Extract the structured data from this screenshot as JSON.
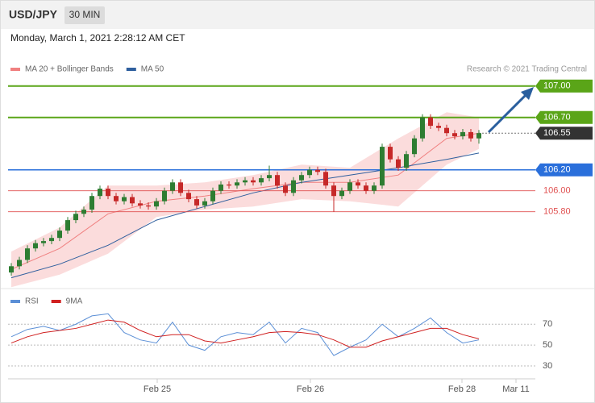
{
  "header": {
    "symbol": "USD/JPY",
    "timeframe": "30 MIN",
    "datetime": "Monday, March 1, 2021 2:28:12 AM CET",
    "credit": "Research © 2021 Trading Central"
  },
  "chart_data": [
    {
      "type": "candlestick",
      "up_color": "#2e7d32",
      "down_color": "#c62828",
      "xlim": [
        -0.4,
        65
      ],
      "ylim": [
        105.09,
        107.09
      ],
      "open": [
        105.22,
        105.28,
        105.34,
        105.45,
        105.5,
        105.52,
        105.55,
        105.62,
        105.72,
        105.78,
        105.82,
        105.95,
        106.02,
        105.95,
        105.9,
        105.94,
        105.88,
        105.86,
        105.85,
        105.9,
        106.0,
        106.08,
        105.98,
        105.92,
        105.86,
        105.9,
        106.0,
        106.06,
        106.05,
        106.08,
        106.1,
        106.08,
        106.12,
        106.15,
        106.05,
        105.98,
        106.1,
        106.15,
        106.2,
        106.18,
        106.05,
        105.95,
        106.0,
        106.08,
        106.05,
        106.0,
        106.05,
        106.42,
        106.3,
        106.22,
        106.35,
        106.5,
        106.7,
        106.62,
        106.6,
        106.55,
        106.52,
        106.56,
        106.5
      ],
      "high": [
        105.31,
        105.37,
        105.48,
        105.53,
        105.55,
        105.58,
        105.65,
        105.75,
        105.81,
        105.85,
        105.98,
        106.05,
        106.05,
        105.98,
        105.97,
        105.97,
        105.91,
        105.89,
        105.93,
        106.03,
        106.11,
        106.11,
        106.01,
        105.95,
        105.93,
        106.03,
        106.09,
        106.09,
        106.11,
        106.13,
        106.13,
        106.15,
        106.24,
        106.18,
        106.08,
        106.13,
        106.18,
        106.23,
        106.23,
        106.21,
        106.08,
        106.03,
        106.11,
        106.11,
        106.08,
        106.08,
        106.45,
        106.45,
        106.33,
        106.38,
        106.53,
        106.73,
        106.73,
        106.65,
        106.63,
        106.58,
        106.59,
        106.59,
        106.58
      ],
      "low": [
        105.19,
        105.25,
        105.31,
        105.42,
        105.47,
        105.49,
        105.52,
        105.59,
        105.69,
        105.75,
        105.79,
        105.92,
        105.92,
        105.87,
        105.87,
        105.85,
        105.83,
        105.82,
        105.82,
        105.87,
        105.97,
        105.95,
        105.89,
        105.83,
        105.83,
        105.87,
        105.97,
        106.02,
        106.02,
        106.05,
        106.05,
        106.05,
        106.09,
        106.02,
        105.95,
        105.95,
        106.07,
        106.12,
        106.15,
        106.02,
        105.8,
        105.92,
        105.97,
        106.02,
        105.97,
        105.97,
        106.02,
        106.27,
        106.19,
        106.19,
        106.32,
        106.47,
        106.59,
        106.57,
        106.52,
        106.49,
        106.49,
        106.47,
        106.45
      ],
      "close": [
        105.28,
        105.34,
        105.45,
        105.5,
        105.52,
        105.55,
        105.62,
        105.72,
        105.78,
        105.82,
        105.95,
        106.02,
        105.95,
        105.9,
        105.94,
        105.88,
        105.86,
        105.85,
        105.9,
        106.0,
        106.08,
        105.98,
        105.92,
        105.86,
        105.9,
        106.0,
        106.06,
        106.05,
        106.08,
        106.1,
        106.08,
        106.12,
        106.15,
        106.05,
        105.98,
        106.1,
        106.15,
        106.2,
        106.18,
        106.05,
        105.95,
        106.0,
        106.08,
        106.05,
        106.0,
        106.05,
        106.42,
        106.3,
        106.22,
        106.35,
        106.5,
        106.7,
        106.62,
        106.6,
        106.55,
        106.52,
        106.56,
        106.5,
        106.55
      ],
      "series": [
        {
          "name": "MA 20 + Bollinger Bands",
          "color": "#f08080",
          "band_color": "#fbdcdc",
          "x": [
            0,
            6,
            12,
            18,
            24,
            30,
            36,
            42,
            48,
            54,
            58
          ],
          "values": [
            105.25,
            105.45,
            105.78,
            105.9,
            105.95,
            106.02,
            106.08,
            106.08,
            106.15,
            106.5,
            106.55
          ],
          "upper": [
            105.42,
            105.65,
            106.05,
            106.05,
            106.08,
            106.15,
            106.25,
            106.22,
            106.5,
            106.75,
            106.7
          ],
          "lower": [
            105.08,
            105.2,
            105.4,
            105.75,
            105.82,
            105.85,
            105.92,
            105.9,
            105.85,
            106.25,
            106.4
          ]
        },
        {
          "name": "MA 50",
          "color": "#2f5f9e",
          "x": [
            0,
            6,
            12,
            18,
            24,
            30,
            36,
            42,
            48,
            54,
            58
          ],
          "values": [
            105.17,
            105.3,
            105.48,
            105.72,
            105.85,
            105.98,
            106.08,
            106.15,
            106.22,
            106.3,
            106.36
          ]
        }
      ],
      "levels": [
        {
          "value": 107,
          "label": "107.00",
          "color": "#5aa518",
          "box": true,
          "line": "solid"
        },
        {
          "value": 106.7,
          "label": "106.70",
          "color": "#5aa518",
          "box": true,
          "line": "solid"
        },
        {
          "value": 106.55,
          "label": "106.55",
          "color": "#333333",
          "box": true,
          "line": "dotted"
        },
        {
          "value": 106.2,
          "label": "106.20",
          "color": "#2a6fdb",
          "box": true,
          "line": "solid"
        },
        {
          "value": 106,
          "label": "106.00",
          "color": "#e05050",
          "box": false,
          "line": "thin"
        },
        {
          "value": 105.8,
          "label": "105.80",
          "color": "#e05050",
          "box": false,
          "line": "thin"
        }
      ]
    },
    {
      "type": "line",
      "xlim": [
        -0.4,
        65
      ],
      "ylim": [
        20,
        98
      ],
      "yticks": [
        30,
        50,
        70
      ],
      "xticks": [
        {
          "value": 18.1,
          "label": "Feb 25"
        },
        {
          "value": 37.1,
          "label": "Feb 26"
        },
        {
          "value": 55.9,
          "label": "Feb 28"
        },
        {
          "value": 62.6,
          "label": "Mar 11"
        }
      ],
      "series": [
        {
          "name": "RSI",
          "color": "#5b8fd6",
          "x": [
            0,
            2,
            4,
            6,
            8,
            10,
            12,
            14,
            16,
            18,
            20,
            22,
            24,
            26,
            28,
            30,
            32,
            34,
            36,
            38,
            40,
            42,
            44,
            46,
            48,
            50,
            52,
            54,
            56,
            58
          ],
          "values": [
            58,
            65,
            68,
            64,
            70,
            78,
            80,
            62,
            55,
            52,
            72,
            50,
            45,
            58,
            62,
            60,
            72,
            52,
            66,
            62,
            40,
            48,
            55,
            70,
            58,
            66,
            76,
            62,
            52,
            55
          ]
        },
        {
          "name": "9MA",
          "color": "#d02020",
          "x": [
            0,
            2,
            4,
            6,
            8,
            10,
            12,
            14,
            16,
            18,
            20,
            22,
            24,
            26,
            28,
            30,
            32,
            34,
            36,
            38,
            40,
            42,
            44,
            46,
            48,
            50,
            52,
            54,
            56,
            58
          ],
          "values": [
            52,
            58,
            62,
            64,
            66,
            70,
            74,
            72,
            64,
            58,
            60,
            60,
            54,
            52,
            55,
            58,
            62,
            63,
            62,
            60,
            55,
            48,
            48,
            54,
            58,
            62,
            66,
            66,
            60,
            56
          ]
        }
      ]
    }
  ]
}
